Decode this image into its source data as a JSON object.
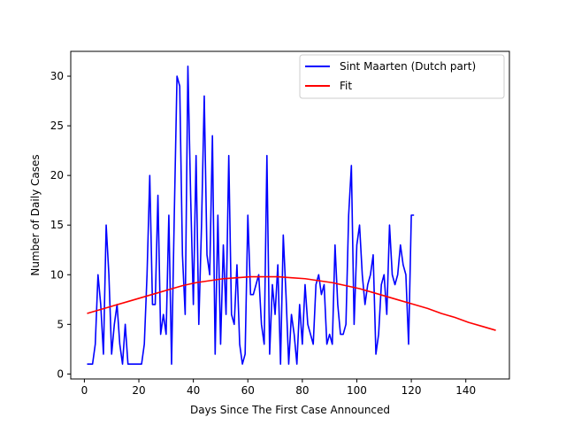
{
  "chart_data": {
    "type": "line",
    "xlabel": "Days Since The First Case Announced",
    "ylabel": "Number of Daily Cases",
    "xlim": [
      -5,
      156
    ],
    "ylim": [
      -0.5,
      32.5
    ],
    "xticks": [
      0,
      20,
      40,
      60,
      80,
      100,
      120,
      140
    ],
    "yticks": [
      0,
      5,
      10,
      15,
      20,
      25,
      30
    ],
    "grid": false,
    "legend_position": "upper right",
    "series": [
      {
        "name": "Sint Maarten (Dutch part)",
        "color": "#0000ff",
        "x": [
          1,
          2,
          3,
          4,
          5,
          6,
          7,
          8,
          9,
          10,
          11,
          12,
          13,
          14,
          15,
          16,
          17,
          18,
          19,
          20,
          21,
          22,
          23,
          24,
          25,
          26,
          27,
          28,
          29,
          30,
          31,
          32,
          33,
          34,
          35,
          36,
          37,
          38,
          39,
          40,
          41,
          42,
          43,
          44,
          45,
          46,
          47,
          48,
          49,
          50,
          51,
          52,
          53,
          54,
          55,
          56,
          57,
          58,
          59,
          60,
          61,
          62,
          63,
          64,
          65,
          66,
          67,
          68,
          69,
          70,
          71,
          72,
          73,
          74,
          75,
          76,
          77,
          78,
          79,
          80,
          81,
          82,
          83,
          84,
          85,
          86,
          87,
          88,
          89,
          90,
          91,
          92,
          93,
          94,
          95,
          96,
          97,
          98,
          99,
          100,
          101,
          102,
          103,
          104,
          105,
          106,
          107,
          108,
          109,
          110,
          111,
          112,
          113,
          114,
          115,
          116,
          117,
          118,
          119,
          120,
          121
        ],
        "y": [
          1,
          1,
          1,
          3,
          10,
          7,
          2,
          15,
          10,
          2,
          5,
          7,
          3,
          1,
          5,
          1,
          1,
          1,
          1,
          1,
          1,
          3,
          10,
          20,
          7,
          7,
          18,
          4,
          6,
          4,
          16,
          1,
          16,
          30,
          29,
          12,
          6,
          31,
          18,
          7,
          22,
          5,
          15,
          28,
          12,
          10,
          24,
          2,
          16,
          3,
          13,
          6,
          22,
          6,
          5,
          11,
          3,
          1,
          2,
          16,
          8,
          8,
          9,
          10,
          5,
          3,
          22,
          2,
          9,
          6,
          11,
          1,
          14,
          8,
          1,
          6,
          4,
          1,
          7,
          3,
          9,
          5,
          4,
          3,
          9,
          10,
          8,
          9,
          3,
          4,
          3,
          13,
          7,
          4,
          4,
          5,
          16,
          21,
          5,
          13,
          15,
          10,
          7,
          9,
          10,
          12,
          2,
          4,
          9,
          10,
          6,
          15,
          10,
          9,
          10,
          13,
          11,
          10,
          3,
          16,
          16
        ]
      },
      {
        "name": "Fit",
        "color": "#ff0000",
        "x": [
          1,
          6,
          11,
          16,
          21,
          26,
          31,
          36,
          41,
          46,
          51,
          56,
          61,
          66,
          71,
          76,
          81,
          86,
          91,
          96,
          101,
          106,
          111,
          116,
          121,
          126,
          131,
          136,
          141,
          146,
          151
        ],
        "y": [
          6.1,
          6.5,
          6.9,
          7.3,
          7.7,
          8.1,
          8.5,
          8.9,
          9.2,
          9.4,
          9.6,
          9.7,
          9.8,
          9.8,
          9.8,
          9.7,
          9.6,
          9.4,
          9.2,
          8.9,
          8.6,
          8.2,
          7.8,
          7.4,
          7.0,
          6.6,
          6.1,
          5.7,
          5.2,
          4.8,
          4.4
        ]
      }
    ]
  }
}
